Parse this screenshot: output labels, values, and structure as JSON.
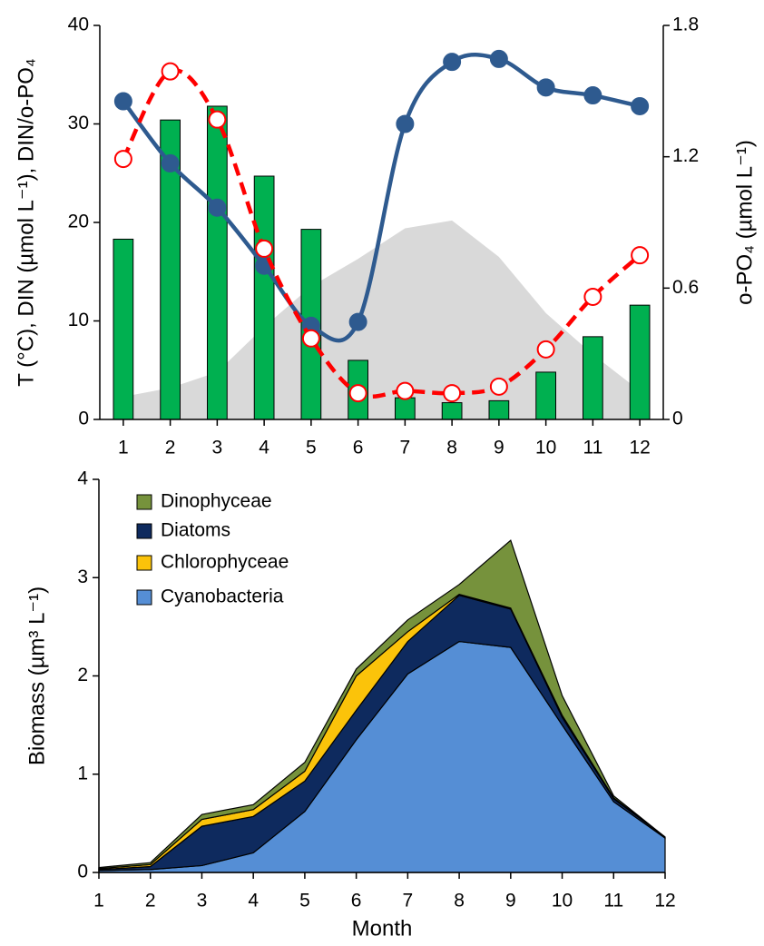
{
  "chart_data": [
    {
      "type": "combo",
      "y_label": "T (°C), DIN (µmol L⁻¹), DIN/o-PO₄",
      "y2_label": "o-PO₄ (µmol L⁻¹)",
      "x": [
        1,
        2,
        3,
        4,
        5,
        6,
        7,
        8,
        9,
        10,
        11,
        12
      ],
      "xlim": [
        0.5,
        12.5
      ],
      "xticks": [
        1,
        2,
        3,
        4,
        5,
        6,
        7,
        8,
        9,
        10,
        11,
        12
      ],
      "ylim": [
        0,
        40
      ],
      "yticks": [
        0,
        10,
        20,
        30,
        40
      ],
      "y2lim": [
        0,
        1.8
      ],
      "y2ticks": [
        0,
        0.6,
        1.2,
        1.8
      ],
      "series": [
        {
          "type": "area",
          "color": "#d9d9d9",
          "values": [
            2.3,
            3.2,
            4.8,
            9.4,
            13.5,
            16.3,
            19.4,
            20.2,
            16.5,
            10.8,
            6.6,
            2.9
          ]
        },
        {
          "type": "bar",
          "color": "#00b050",
          "values": [
            18.3,
            30.4,
            31.8,
            24.7,
            19.3,
            6.0,
            2.2,
            1.7,
            1.9,
            4.8,
            8.4,
            11.6
          ]
        },
        {
          "type": "line",
          "color": "#2e5a8f",
          "marker": "filled",
          "values": [
            32.3,
            26.0,
            21.5,
            15.6,
            9.5,
            9.9,
            30.0,
            36.3,
            36.6,
            33.7,
            32.9,
            31.8
          ]
        },
        {
          "type": "line",
          "axis": "y2",
          "color": "#ff0000",
          "dashed": true,
          "marker": "hollow",
          "values": [
            1.19,
            1.59,
            1.37,
            0.78,
            0.37,
            0.12,
            0.13,
            0.12,
            0.15,
            0.32,
            0.56,
            0.75
          ]
        }
      ]
    },
    {
      "type": "stacked-area",
      "x_label": "Month",
      "y_label": "Biomass (µm³ L⁻¹)",
      "x": [
        1,
        2,
        3,
        4,
        5,
        6,
        7,
        8,
        9,
        10,
        11,
        12
      ],
      "xlim": [
        1,
        12
      ],
      "xticks": [
        1,
        2,
        3,
        4,
        5,
        6,
        7,
        8,
        9,
        10,
        11,
        12
      ],
      "ylim": [
        0,
        4
      ],
      "yticks": [
        0,
        1,
        2,
        3,
        4
      ],
      "legend": "top-left",
      "series": [
        {
          "name": "Cyanobacteria",
          "color": "#558ed5",
          "values": [
            0.02,
            0.03,
            0.07,
            0.2,
            0.62,
            1.35,
            2.02,
            2.35,
            2.29,
            1.5,
            0.72,
            0.35
          ]
        },
        {
          "name": "Diatoms",
          "color": "#0e2a5e",
          "values": [
            0.01,
            0.03,
            0.4,
            0.37,
            0.31,
            0.3,
            0.33,
            0.47,
            0.39,
            0.08,
            0.03,
            0.01
          ]
        },
        {
          "name": "Chlorophyceae",
          "color": "#fbc30a",
          "values": [
            0.01,
            0.02,
            0.07,
            0.07,
            0.1,
            0.35,
            0.1,
            0.01,
            0.01,
            0.02,
            0.01,
            0
          ]
        },
        {
          "name": "Dinophyceae",
          "color": "#76923c",
          "values": [
            0.01,
            0.02,
            0.05,
            0.05,
            0.09,
            0.07,
            0.12,
            0.1,
            0.69,
            0.2,
            0.02,
            0
          ]
        }
      ]
    }
  ]
}
